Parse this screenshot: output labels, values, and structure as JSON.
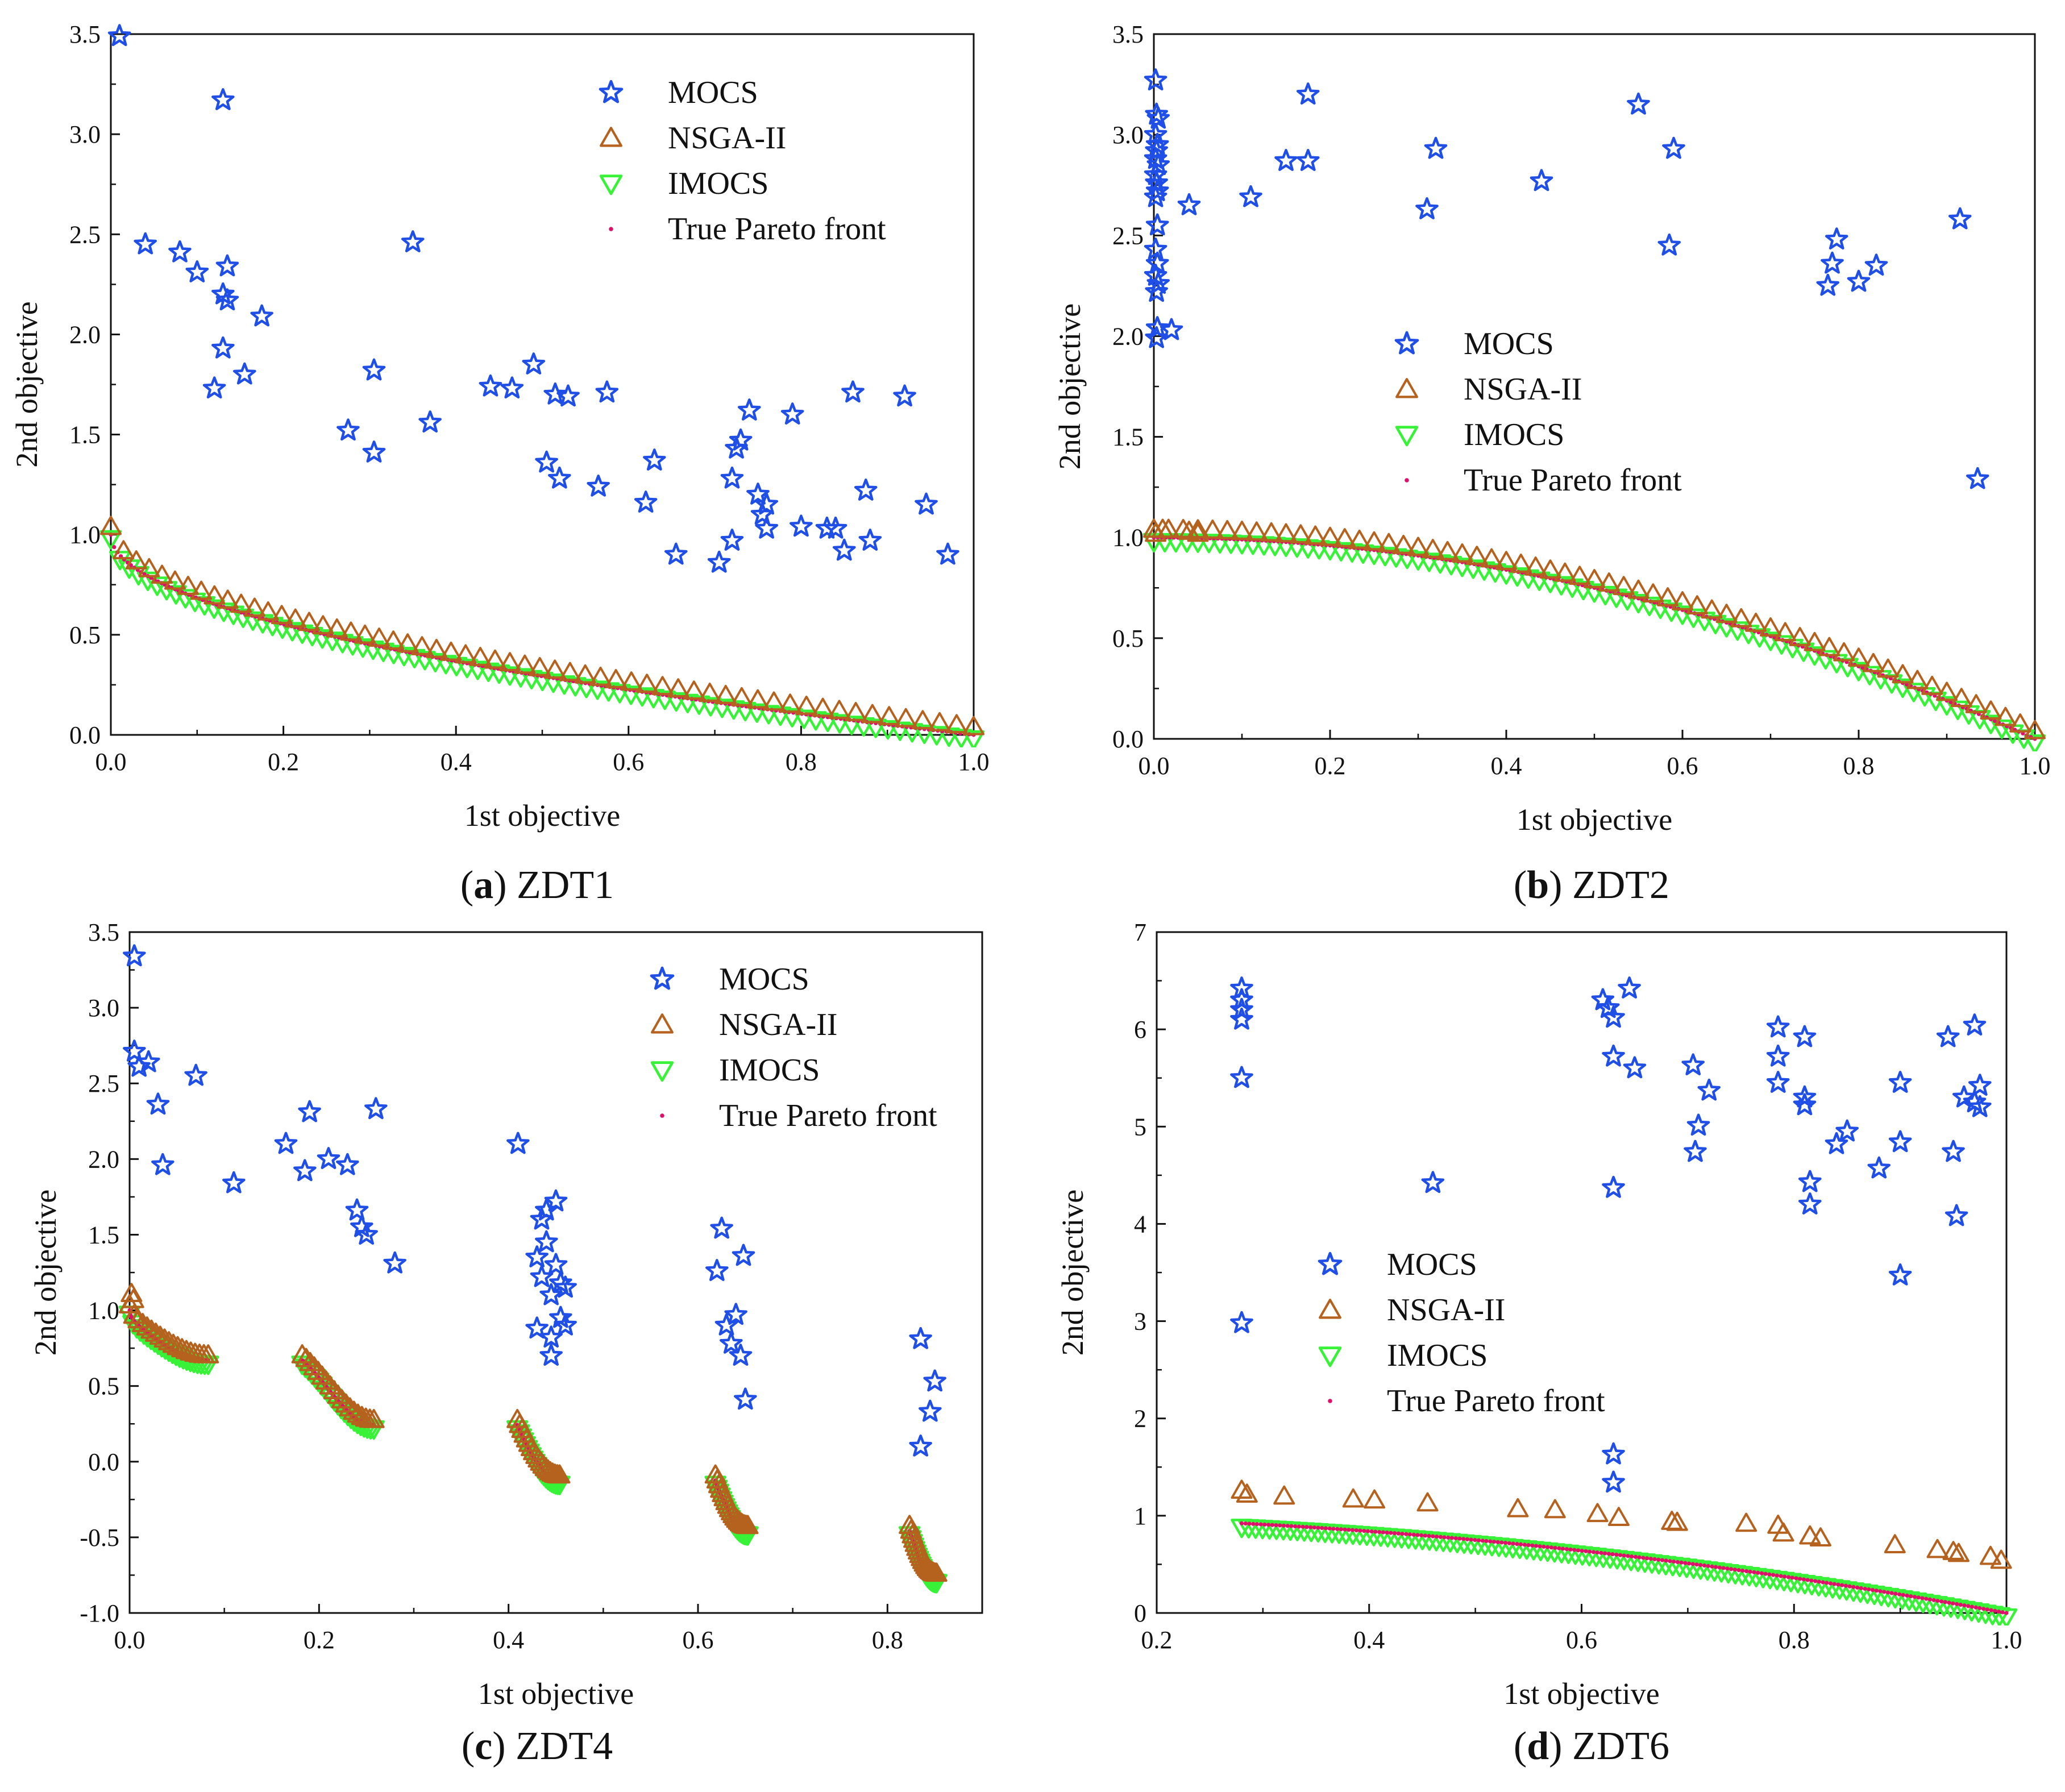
{
  "colors": {
    "mocs": "#1f4fe6",
    "nsga": "#b5621f",
    "imocs": "#38f238",
    "pareto": "#e0106a",
    "axis": "#111111"
  },
  "legend_labels": [
    "MOCS",
    "NSGA-II",
    "IMOCS",
    "True Pareto front"
  ],
  "chart_data": [
    {
      "id": "a",
      "type": "scatter",
      "caption_letter": "a",
      "caption_name": "ZDT1",
      "xlabel": "1st objective",
      "ylabel": "2nd objective",
      "xlim": [
        0.0,
        1.0
      ],
      "ylim": [
        0.0,
        3.5
      ],
      "xticks": [
        0.0,
        0.2,
        0.4,
        0.6,
        0.8,
        1.0
      ],
      "yticks": [
        0.0,
        0.5,
        1.0,
        1.5,
        2.0,
        2.5,
        3.0,
        3.5
      ],
      "tick_decimals": 1,
      "legend_position": "top-right",
      "series": [
        {
          "name": "MOCS",
          "marker": "star",
          "points": [
            [
              0.01,
              3.49
            ],
            [
              0.13,
              3.17
            ],
            [
              0.04,
              2.45
            ],
            [
              0.08,
              2.41
            ],
            [
              0.1,
              2.31
            ],
            [
              0.13,
              2.2
            ],
            [
              0.135,
              2.34
            ],
            [
              0.135,
              2.17
            ],
            [
              0.175,
              2.09
            ],
            [
              0.13,
              1.93
            ],
            [
              0.155,
              1.8
            ],
            [
              0.12,
              1.73
            ],
            [
              0.35,
              2.46
            ],
            [
              0.305,
              1.82
            ],
            [
              0.275,
              1.52
            ],
            [
              0.305,
              1.41
            ],
            [
              0.37,
              1.56
            ],
            [
              0.44,
              1.74
            ],
            [
              0.465,
              1.73
            ],
            [
              0.49,
              1.85
            ],
            [
              0.505,
              1.36
            ],
            [
              0.515,
              1.7
            ],
            [
              0.52,
              1.28
            ],
            [
              0.53,
              1.69
            ],
            [
              0.565,
              1.24
            ],
            [
              0.575,
              1.71
            ],
            [
              0.62,
              1.16
            ],
            [
              0.63,
              1.37
            ],
            [
              0.655,
              0.9
            ],
            [
              0.705,
              0.86
            ],
            [
              0.72,
              0.97
            ],
            [
              0.72,
              1.28
            ],
            [
              0.725,
              1.43
            ],
            [
              0.73,
              1.47
            ],
            [
              0.74,
              1.62
            ],
            [
              0.75,
              1.2
            ],
            [
              0.755,
              1.1
            ],
            [
              0.76,
              1.15
            ],
            [
              0.76,
              1.03
            ],
            [
              0.79,
              1.6
            ],
            [
              0.8,
              1.04
            ],
            [
              0.83,
              1.03
            ],
            [
              0.84,
              1.03
            ],
            [
              0.85,
              0.92
            ],
            [
              0.86,
              1.71
            ],
            [
              0.875,
              1.22
            ],
            [
              0.88,
              0.97
            ],
            [
              0.92,
              1.69
            ],
            [
              0.945,
              1.15
            ],
            [
              0.97,
              0.9
            ]
          ]
        },
        {
          "name": "NSGA-II",
          "marker": "triangle-up",
          "curve": "zdt1",
          "n": 58,
          "offset": 0.04,
          "from": 0.0,
          "to": 1.0
        },
        {
          "name": "IMOCS",
          "marker": "triangle-down",
          "curve": "zdt1",
          "n": 80,
          "offset": -0.02,
          "from": 0.0,
          "to": 1.0
        },
        {
          "name": "True Pareto front",
          "marker": "dot",
          "curve": "zdt1",
          "n": 220,
          "offset": 0.0,
          "from": 0.0,
          "to": 1.0
        }
      ]
    },
    {
      "id": "b",
      "type": "scatter",
      "caption_letter": "b",
      "caption_name": "ZDT2",
      "xlabel": "1st objective",
      "ylabel": "2nd objective",
      "xlim": [
        0.0,
        1.0
      ],
      "ylim": [
        0.0,
        3.5
      ],
      "xticks": [
        0.0,
        0.2,
        0.4,
        0.6,
        0.8,
        1.0
      ],
      "yticks": [
        0.0,
        0.5,
        1.0,
        1.5,
        2.0,
        2.5,
        3.0,
        3.5
      ],
      "tick_decimals": 1,
      "legend_position": "center-left",
      "series": [
        {
          "name": "MOCS",
          "marker": "star",
          "points": [
            [
              0.002,
              3.27
            ],
            [
              0.003,
              3.1
            ],
            [
              0.005,
              3.08
            ],
            [
              0.002,
              3.0
            ],
            [
              0.004,
              2.95
            ],
            [
              0.003,
              2.92
            ],
            [
              0.002,
              2.88
            ],
            [
              0.005,
              2.85
            ],
            [
              0.002,
              2.8
            ],
            [
              0.003,
              2.76
            ],
            [
              0.004,
              2.72
            ],
            [
              0.002,
              2.69
            ],
            [
              0.004,
              2.55
            ],
            [
              0.002,
              2.43
            ],
            [
              0.004,
              2.36
            ],
            [
              0.002,
              2.3
            ],
            [
              0.005,
              2.26
            ],
            [
              0.003,
              2.22
            ],
            [
              0.004,
              2.04
            ],
            [
              0.003,
              1.99
            ],
            [
              0.02,
              2.03
            ],
            [
              0.04,
              2.65
            ],
            [
              0.11,
              2.69
            ],
            [
              0.15,
              2.87
            ],
            [
              0.175,
              2.87
            ],
            [
              0.175,
              3.2
            ],
            [
              0.31,
              2.63
            ],
            [
              0.32,
              2.93
            ],
            [
              0.44,
              2.77
            ],
            [
              0.55,
              3.15
            ],
            [
              0.585,
              2.45
            ],
            [
              0.59,
              2.93
            ],
            [
              0.765,
              2.25
            ],
            [
              0.77,
              2.36
            ],
            [
              0.775,
              2.48
            ],
            [
              0.8,
              2.27
            ],
            [
              0.82,
              2.35
            ],
            [
              0.915,
              2.58
            ],
            [
              0.935,
              1.29
            ]
          ]
        },
        {
          "name": "NSGA-II",
          "marker": "triangle-up",
          "curve": "zdt2",
          "n": 60,
          "offset": 0.04,
          "from": 0.0,
          "to": 1.0,
          "extra": [
            [
              0.002,
              1.02
            ],
            [
              0.01,
              1.04
            ],
            [
              0.04,
              1.03
            ],
            [
              0.05,
              1.02
            ]
          ]
        },
        {
          "name": "IMOCS",
          "marker": "triangle-down",
          "curve": "zdt2",
          "n": 80,
          "offset": -0.02,
          "from": 0.0,
          "to": 1.0
        },
        {
          "name": "True Pareto front",
          "marker": "dot",
          "curve": "zdt2",
          "n": 220,
          "offset": 0.0,
          "from": 0.0,
          "to": 1.0
        }
      ]
    },
    {
      "id": "c",
      "type": "scatter",
      "caption_letter": "c",
      "caption_name": "ZDT4",
      "xlabel": "1st objective",
      "ylabel": "2nd objective",
      "xlim": [
        0.0,
        0.9
      ],
      "ylim": [
        -1.0,
        3.5
      ],
      "xticks": [
        0.0,
        0.2,
        0.4,
        0.6,
        0.8
      ],
      "yticks": [
        -1.0,
        -0.5,
        0.0,
        0.5,
        1.0,
        1.5,
        2.0,
        2.5,
        3.0,
        3.5
      ],
      "tick_decimals": 1,
      "legend_position": "top-right",
      "series": [
        {
          "name": "MOCS",
          "marker": "star",
          "points": [
            [
              0.005,
              3.34
            ],
            [
              0.005,
              2.71
            ],
            [
              0.01,
              2.61
            ],
            [
              0.02,
              2.64
            ],
            [
              0.03,
              2.36
            ],
            [
              0.035,
              1.96
            ],
            [
              0.07,
              2.55
            ],
            [
              0.11,
              1.84
            ],
            [
              0.165,
              2.1
            ],
            [
              0.185,
              1.92
            ],
            [
              0.19,
              2.31
            ],
            [
              0.21,
              2.0
            ],
            [
              0.23,
              1.96
            ],
            [
              0.24,
              1.66
            ],
            [
              0.245,
              1.55
            ],
            [
              0.25,
              1.5
            ],
            [
              0.26,
              2.33
            ],
            [
              0.28,
              1.31
            ],
            [
              0.41,
              2.1
            ],
            [
              0.43,
              1.35
            ],
            [
              0.43,
              0.88
            ],
            [
              0.435,
              1.6
            ],
            [
              0.435,
              1.22
            ],
            [
              0.44,
              1.45
            ],
            [
              0.44,
              1.66
            ],
            [
              0.445,
              1.1
            ],
            [
              0.445,
              0.82
            ],
            [
              0.45,
              1.3
            ],
            [
              0.45,
              1.72
            ],
            [
              0.455,
              1.18
            ],
            [
              0.455,
              0.95
            ],
            [
              0.46,
              1.15
            ],
            [
              0.46,
              0.9
            ],
            [
              0.445,
              0.7
            ],
            [
              0.62,
              1.26
            ],
            [
              0.625,
              1.54
            ],
            [
              0.63,
              0.9
            ],
            [
              0.635,
              0.78
            ],
            [
              0.64,
              0.97
            ],
            [
              0.645,
              0.7
            ],
            [
              0.648,
              1.36
            ],
            [
              0.65,
              0.41
            ],
            [
              0.835,
              0.81
            ],
            [
              0.835,
              0.1
            ],
            [
              0.845,
              0.33
            ],
            [
              0.85,
              0.53
            ]
          ]
        },
        {
          "name": "NSGA-II",
          "marker": "triangle-up",
          "curve": "zdt4",
          "n": 90,
          "offset": 0.035,
          "from": 0.0,
          "to": 0.852,
          "extra": [
            [
              0.002,
              1.11
            ],
            [
              0.004,
              1.07
            ]
          ]
        },
        {
          "name": "IMOCS",
          "marker": "triangle-down",
          "curve": "zdt4",
          "n": 110,
          "offset": -0.025,
          "from": 0.0,
          "to": 0.852
        },
        {
          "name": "True Pareto front",
          "marker": "dot",
          "curve": "zdt4",
          "n": 400,
          "offset": 0.0,
          "from": 0.0,
          "to": 0.852
        }
      ]
    },
    {
      "id": "d",
      "type": "scatter",
      "caption_letter": "d",
      "caption_name": "ZDT6",
      "xlabel": "1st objective",
      "ylabel": "2nd objective",
      "xlim": [
        0.2,
        1.0
      ],
      "ylim": [
        0,
        7
      ],
      "xticks": [
        0.2,
        0.4,
        0.6,
        0.8,
        1.0
      ],
      "yticks": [
        0,
        1,
        2,
        3,
        4,
        5,
        6,
        7
      ],
      "tick_decimals_x": 1,
      "tick_decimals": 0,
      "legend_position": "center-left",
      "series": [
        {
          "name": "MOCS",
          "marker": "star",
          "points": [
            [
              0.28,
              6.42
            ],
            [
              0.28,
              6.3
            ],
            [
              0.28,
              6.2
            ],
            [
              0.28,
              6.1
            ],
            [
              0.28,
              5.5
            ],
            [
              0.28,
              2.98
            ],
            [
              0.46,
              4.42
            ],
            [
              0.62,
              6.3
            ],
            [
              0.625,
              6.22
            ],
            [
              0.63,
              6.12
            ],
            [
              0.63,
              5.72
            ],
            [
              0.63,
              4.37
            ],
            [
              0.63,
              1.63
            ],
            [
              0.63,
              1.34
            ],
            [
              0.645,
              6.42
            ],
            [
              0.65,
              5.6
            ],
            [
              0.705,
              5.63
            ],
            [
              0.707,
              4.74
            ],
            [
              0.71,
              5.01
            ],
            [
              0.72,
              5.37
            ],
            [
              0.785,
              6.02
            ],
            [
              0.785,
              5.72
            ],
            [
              0.785,
              5.45
            ],
            [
              0.81,
              5.92
            ],
            [
              0.81,
              5.3
            ],
            [
              0.81,
              5.22
            ],
            [
              0.815,
              4.43
            ],
            [
              0.815,
              4.2
            ],
            [
              0.84,
              4.82
            ],
            [
              0.85,
              4.95
            ],
            [
              0.88,
              4.57
            ],
            [
              0.9,
              5.45
            ],
            [
              0.9,
              4.84
            ],
            [
              0.9,
              3.47
            ],
            [
              0.945,
              5.92
            ],
            [
              0.95,
              4.74
            ],
            [
              0.953,
              4.08
            ],
            [
              0.96,
              5.3
            ],
            [
              0.97,
              6.04
            ],
            [
              0.97,
              5.25
            ],
            [
              0.975,
              5.42
            ],
            [
              0.975,
              5.2
            ]
          ]
        },
        {
          "name": "NSGA-II",
          "marker": "triangle-up",
          "points": [
            [
              0.28,
              1.26
            ],
            [
              0.285,
              1.22
            ],
            [
              0.32,
              1.2
            ],
            [
              0.385,
              1.17
            ],
            [
              0.405,
              1.16
            ],
            [
              0.455,
              1.13
            ],
            [
              0.54,
              1.07
            ],
            [
              0.575,
              1.06
            ],
            [
              0.615,
              1.02
            ],
            [
              0.635,
              0.98
            ],
            [
              0.685,
              0.94
            ],
            [
              0.69,
              0.93
            ],
            [
              0.755,
              0.92
            ],
            [
              0.785,
              0.9
            ],
            [
              0.79,
              0.82
            ],
            [
              0.815,
              0.79
            ],
            [
              0.825,
              0.77
            ],
            [
              0.895,
              0.7
            ],
            [
              0.935,
              0.65
            ],
            [
              0.95,
              0.63
            ],
            [
              0.955,
              0.61
            ],
            [
              0.985,
              0.58
            ],
            [
              0.995,
              0.54
            ]
          ]
        },
        {
          "name": "IMOCS",
          "marker": "triangle-down",
          "curve": "zdt6",
          "n": 110,
          "offset": -0.04,
          "from": 0.28,
          "to": 1.0
        },
        {
          "name": "True Pareto front",
          "marker": "dot",
          "curve": "zdt6",
          "n": 200,
          "offset": 0.0,
          "from": 0.28,
          "to": 1.0
        }
      ]
    }
  ]
}
